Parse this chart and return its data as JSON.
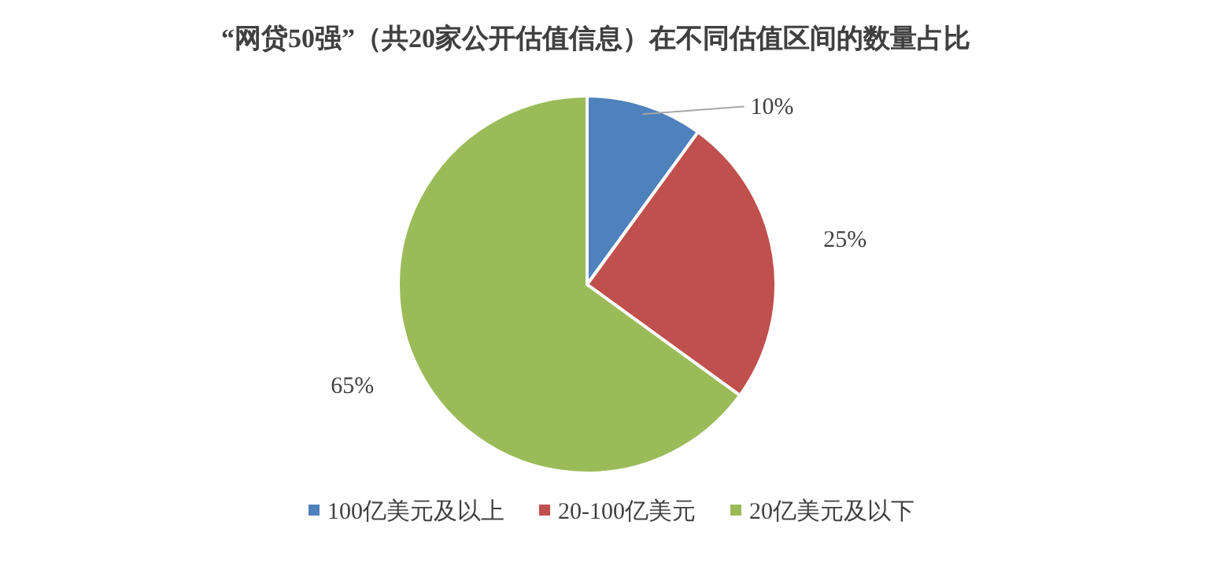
{
  "chart_data": {
    "type": "pie",
    "title": "“网贷50强”（共20家公开估值信息）在不同估值区间的数量占比",
    "categories": [
      "100亿美元及以上",
      "20-100亿美元",
      "20亿美元及以下"
    ],
    "values": [
      10,
      25,
      65
    ],
    "colors": [
      "#4f81bd",
      "#c0504d",
      "#9bbb59"
    ],
    "value_labels": [
      "10%",
      "25%",
      "65%"
    ],
    "legend": "bottom"
  }
}
